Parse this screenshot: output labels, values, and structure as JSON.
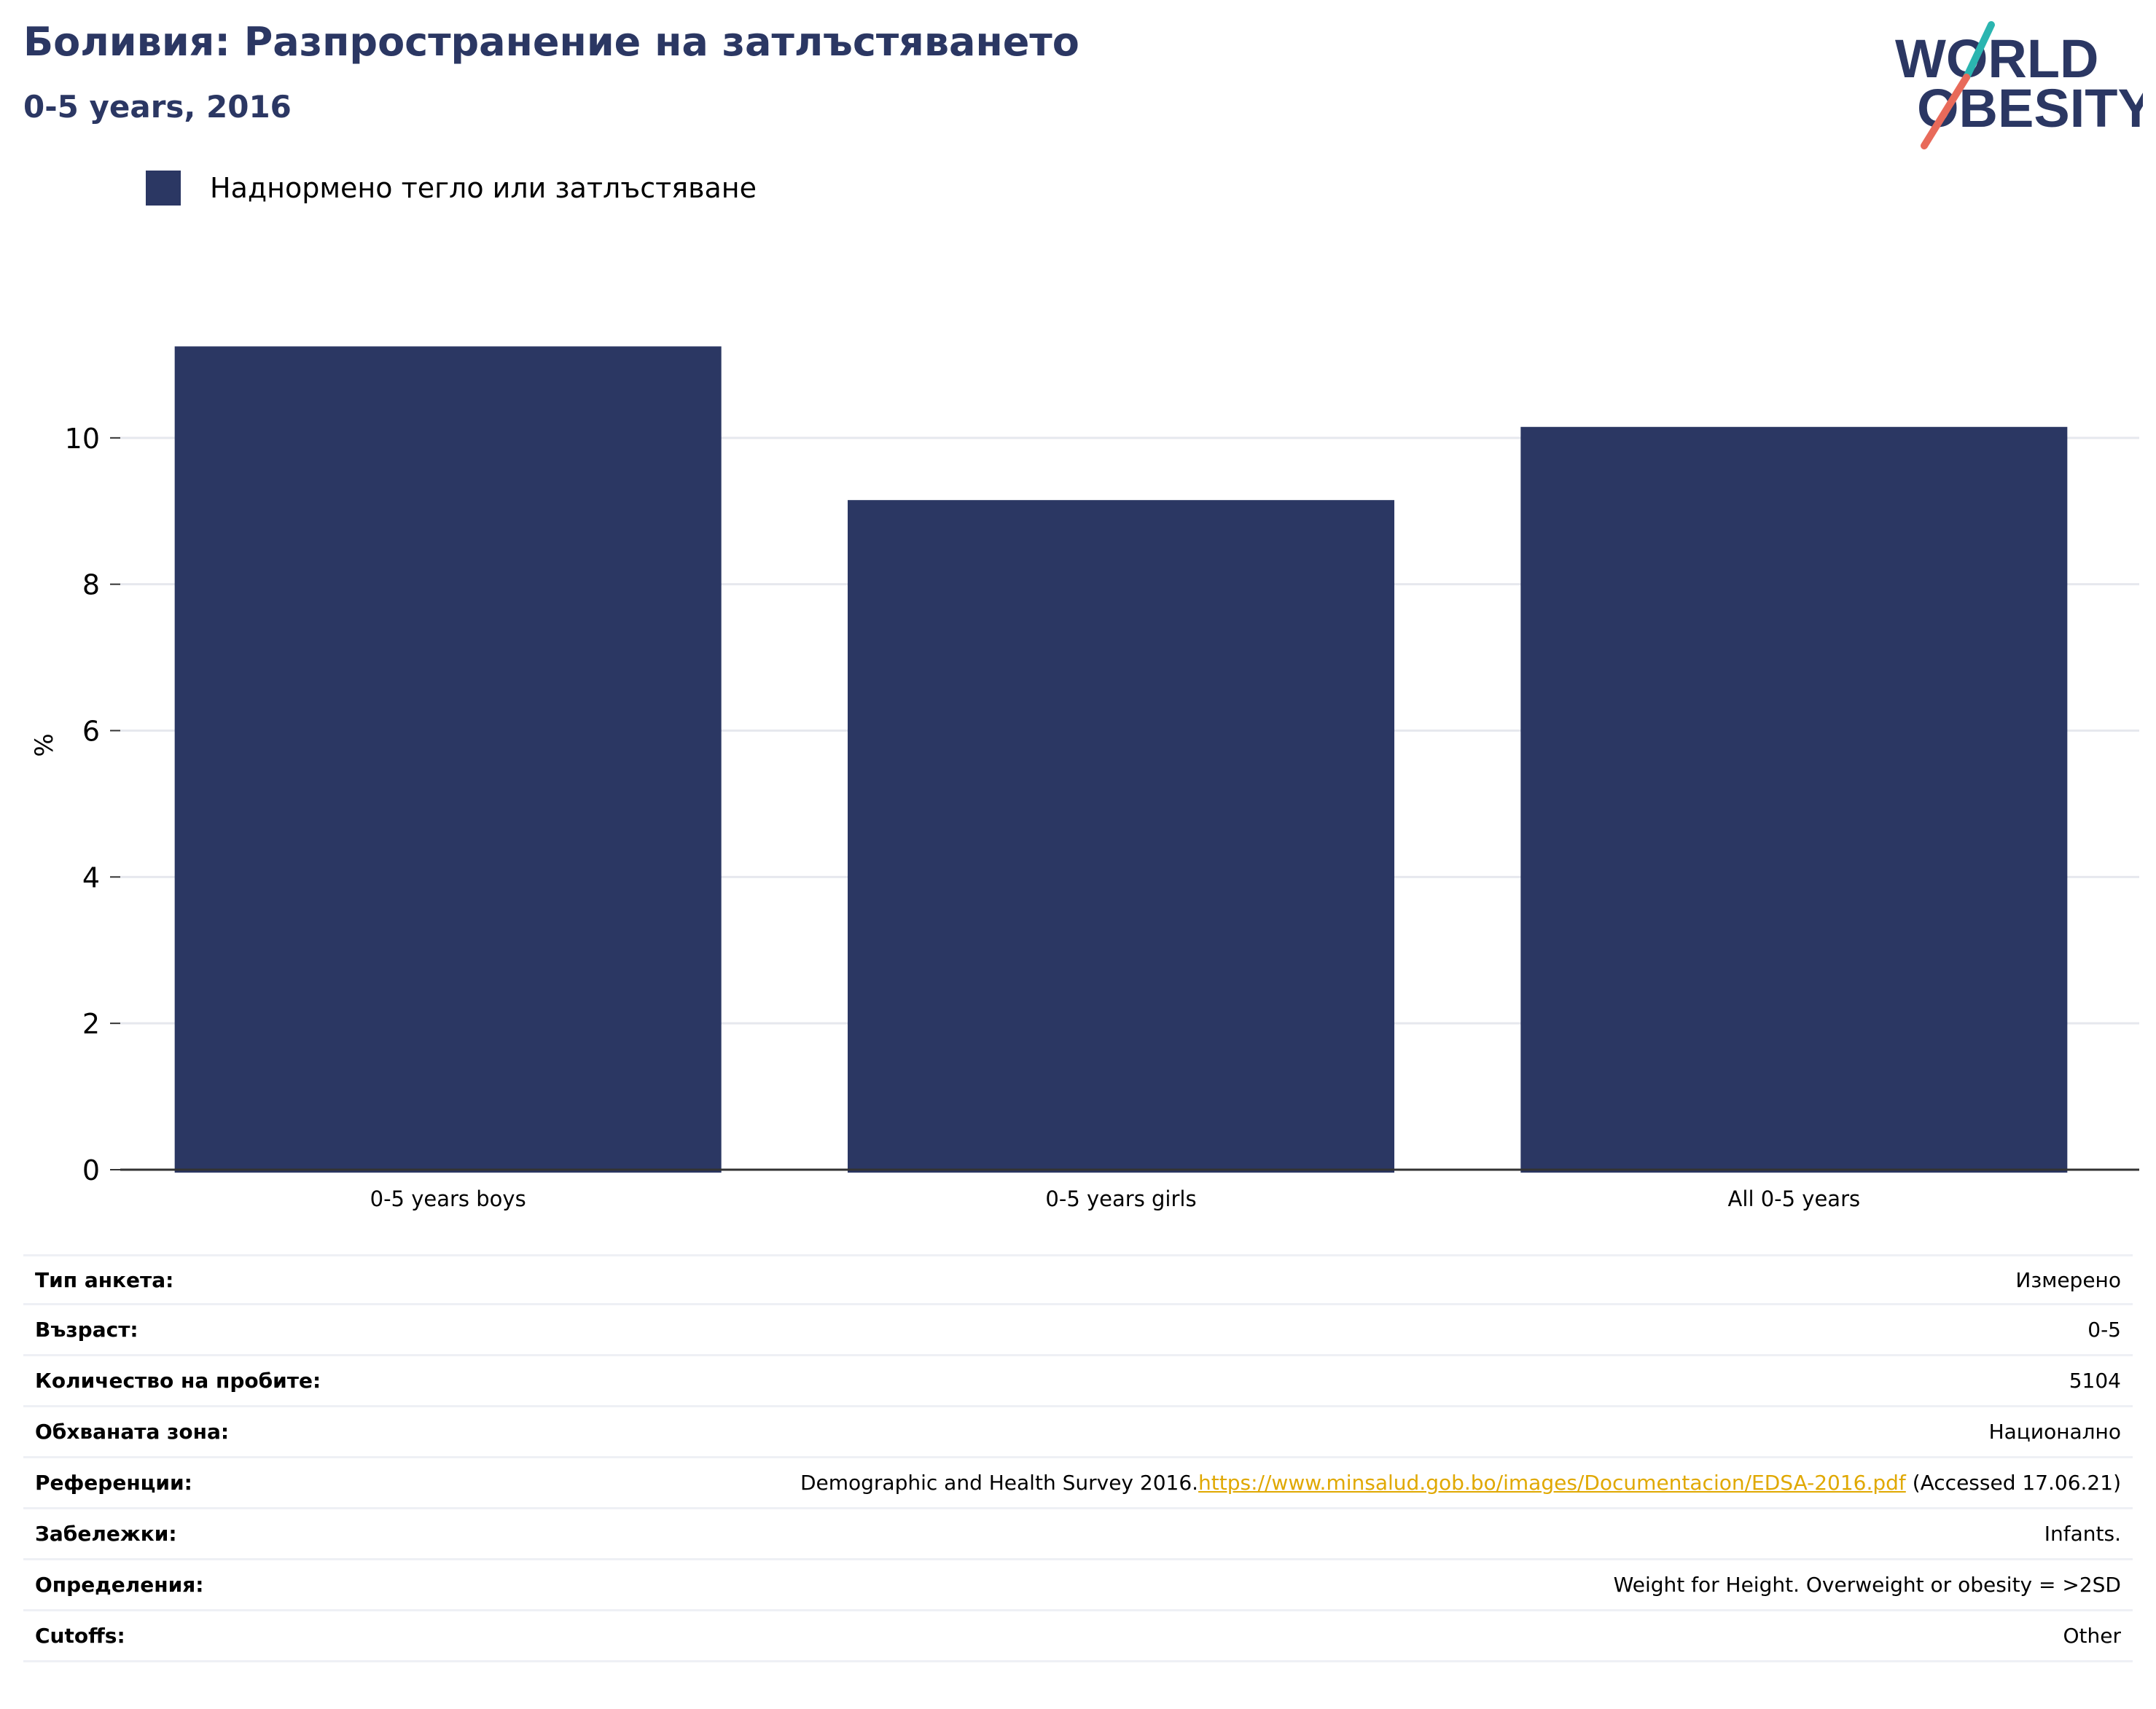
{
  "header": {
    "title": "Боливия: Разпространение на затлъстяването",
    "subtitle": "0-5 years, 2016"
  },
  "logo": {
    "line1": "WORLD",
    "line2": "OBESITY",
    "colors": {
      "text": "#2b3763",
      "slash_top": "#2bb5b0",
      "slash_bottom": "#e86a5a"
    }
  },
  "chart_data": {
    "type": "bar",
    "title": "",
    "categories": [
      "0-5 years boys",
      "0-5 years girls",
      "All 0-5 years"
    ],
    "series": [
      {
        "name": "Наднормено тегло или затлъстяване",
        "values": [
          11.25,
          9.15,
          10.15
        ],
        "color": "#2b3763"
      }
    ],
    "xlabel": "",
    "ylabel": "%",
    "ylim": [
      0,
      12
    ],
    "yticks": [
      0,
      2,
      4,
      6,
      8,
      10
    ],
    "grid": true,
    "legend": "top-left"
  },
  "info": {
    "rows": [
      {
        "label": "Тип анкета:",
        "value": "Измерено"
      },
      {
        "label": "Възраст:",
        "value": "0-5"
      },
      {
        "label": "Количество на пробите:",
        "value": "5104"
      },
      {
        "label": "Обхваната зона:",
        "value": "Национално"
      },
      {
        "label": "Референции:",
        "value": "Demographic and Health Survey 2016.",
        "link": "https://www.minsalud.gob.bo/images/Documentacion/EDSA-2016.pdf",
        "suffix": " (Accessed 17.06.21)"
      },
      {
        "label": "Забележки:",
        "value": "Infants."
      },
      {
        "label": "Определения:",
        "value": "Weight for Height. Overweight or obesity = >2SD"
      },
      {
        "label": "Cutoffs:",
        "value": "Other"
      }
    ]
  }
}
